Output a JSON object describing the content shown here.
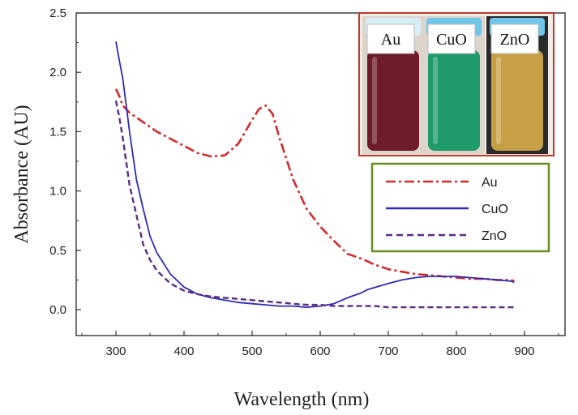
{
  "chart_data": {
    "type": "line",
    "xlabel": "Wavelength (nm)",
    "ylabel": "Absorbance (AU)",
    "xlim": [
      250,
      950
    ],
    "ylim": [
      -0.2,
      2.5
    ],
    "xticks": [
      300,
      400,
      500,
      600,
      700,
      800,
      900
    ],
    "yticks": [
      0.0,
      0.5,
      1.0,
      1.5,
      2.0,
      2.5
    ],
    "xtick_labels": [
      "300",
      "400",
      "500",
      "600",
      "700",
      "800",
      "900"
    ],
    "ytick_labels": [
      "0.0",
      "0.5",
      "1.0",
      "1.5",
      "2.0",
      "2.5"
    ],
    "legend_position": "right, below inset photo",
    "grid": false,
    "series": [
      {
        "name": "Au",
        "color": "#d42a2a",
        "style": "dash-dot",
        "x": [
          300,
          305,
          310,
          320,
          340,
          360,
          380,
          400,
          420,
          440,
          460,
          480,
          500,
          510,
          520,
          530,
          540,
          560,
          580,
          600,
          620,
          640,
          660,
          680,
          700,
          720,
          740,
          760,
          780,
          800,
          820,
          840,
          860,
          880,
          885
        ],
        "y": [
          1.86,
          1.8,
          1.72,
          1.66,
          1.58,
          1.5,
          1.44,
          1.38,
          1.32,
          1.29,
          1.3,
          1.4,
          1.6,
          1.69,
          1.72,
          1.65,
          1.45,
          1.1,
          0.85,
          0.7,
          0.58,
          0.47,
          0.43,
          0.38,
          0.34,
          0.32,
          0.3,
          0.29,
          0.28,
          0.27,
          0.26,
          0.26,
          0.25,
          0.25,
          0.24
        ]
      },
      {
        "name": "CuO",
        "color": "#2f2ab4",
        "style": "solid",
        "x": [
          300,
          305,
          310,
          320,
          330,
          340,
          350,
          360,
          380,
          400,
          420,
          440,
          460,
          480,
          500,
          520,
          540,
          560,
          580,
          600,
          620,
          640,
          650,
          660,
          670,
          700,
          720,
          740,
          760,
          780,
          800,
          820,
          840,
          860,
          880,
          885
        ],
        "y": [
          2.26,
          2.1,
          1.95,
          1.5,
          1.1,
          0.85,
          0.62,
          0.48,
          0.3,
          0.19,
          0.13,
          0.1,
          0.08,
          0.06,
          0.05,
          0.04,
          0.03,
          0.03,
          0.02,
          0.03,
          0.05,
          0.1,
          0.12,
          0.14,
          0.17,
          0.22,
          0.25,
          0.27,
          0.28,
          0.28,
          0.28,
          0.27,
          0.26,
          0.25,
          0.24,
          0.23
        ]
      },
      {
        "name": "ZnO",
        "color": "#5b2c82",
        "style": "dashed",
        "x": [
          300,
          305,
          310,
          320,
          330,
          340,
          350,
          360,
          380,
          400,
          420,
          440,
          460,
          480,
          500,
          520,
          540,
          560,
          580,
          600,
          620,
          640,
          660,
          680,
          700,
          720,
          740,
          760,
          780,
          800,
          820,
          840,
          860,
          880,
          885
        ],
        "y": [
          1.76,
          1.62,
          1.45,
          1.05,
          0.8,
          0.55,
          0.42,
          0.33,
          0.22,
          0.16,
          0.13,
          0.11,
          0.1,
          0.09,
          0.08,
          0.07,
          0.06,
          0.05,
          0.04,
          0.04,
          0.03,
          0.03,
          0.03,
          0.03,
          0.02,
          0.02,
          0.02,
          0.02,
          0.02,
          0.02,
          0.02,
          0.02,
          0.02,
          0.02,
          0.02
        ]
      }
    ]
  },
  "inset": {
    "vials": [
      {
        "label": "Au",
        "liquid": "#6e1c2b",
        "cap": "#d8eef7"
      },
      {
        "label": "CuO",
        "liquid": "#1f9a6a",
        "cap": "#6fc6ea"
      },
      {
        "label": "ZnO",
        "liquid": "#c7a046",
        "cap": "#6fc6ea"
      }
    ],
    "border_color": "#c0392b"
  },
  "legend": {
    "border_color": "#6b8e23",
    "items": [
      {
        "label": "Au",
        "color": "#d42a2a",
        "dash": "12,4,3,4"
      },
      {
        "label": "CuO",
        "color": "#2f2ab4",
        "dash": ""
      },
      {
        "label": "ZnO",
        "color": "#5b2c82",
        "dash": "8,5"
      }
    ]
  }
}
